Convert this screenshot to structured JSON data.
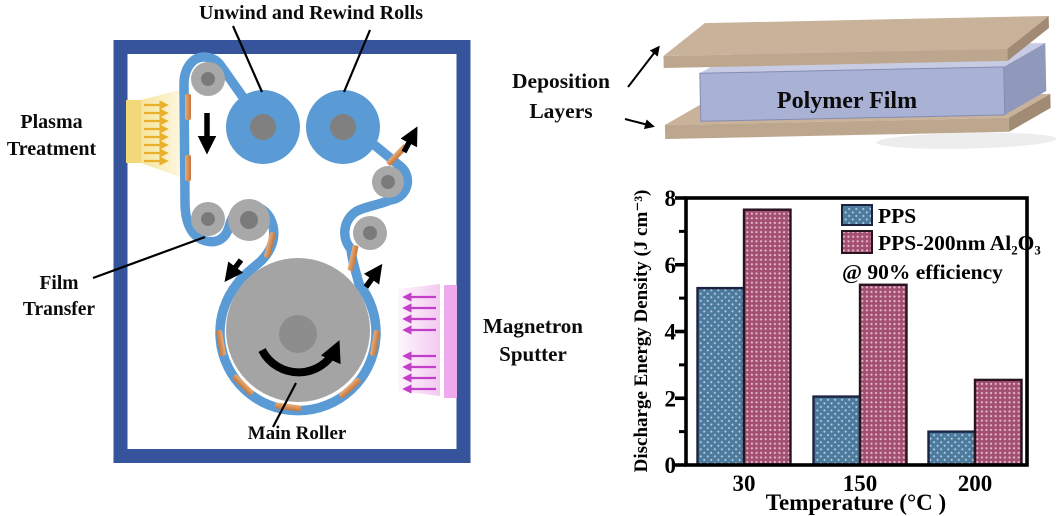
{
  "figure": {
    "labels": {
      "unwind_rolls": "Unwind and Rewind Rolls",
      "plasma": "Plasma\nTreatment",
      "film_transfer": "Film\nTransfer",
      "main_roller": "Main Roller",
      "magnetron": "Magnetron\nSputter",
      "deposition_layers": "Deposition\nLayers",
      "polymer_film": "Polymer Film"
    },
    "colors": {
      "chamber_wall": "#36549C",
      "film_web": "#5B9BD5",
      "roller_gray": "#A8A8A8",
      "roller_hub": "#7A7A7A",
      "coating_patch": "#CE8A50",
      "plasma_source": "#F2D878",
      "plasma_arrows": "#E9B02E",
      "sputter_source": "#EFA9ED",
      "sputter_arrows": "#C43FC9",
      "slab_tan": "#BDA68E",
      "slab_film": "#A9B1D4"
    }
  },
  "chart_data": {
    "type": "bar",
    "title": "",
    "categories": [
      "30",
      "150",
      "200"
    ],
    "series": [
      {
        "name": "PPS",
        "values": [
          5.3,
          2.05,
          1.0
        ],
        "color": "#4D7B9E",
        "dot": "#BBD1E1",
        "edge": "#1B2340"
      },
      {
        "name": "PPS-200nm Al₂O₃",
        "values": [
          7.65,
          5.4,
          2.55
        ],
        "color": "#A24F72",
        "dot": "#E4B8C9",
        "edge": "#2A1420"
      },
      {
        "name_note": ""
      }
    ],
    "annotation": "@ 90% efficiency",
    "xlabel": "Temperature (°C )",
    "ylabel": "Discharge Energy Density (J cm⁻³)",
    "ylim": [
      0,
      8
    ],
    "yticks": [
      0,
      2,
      4,
      6,
      8
    ],
    "yticks_minor": [
      1,
      3,
      5,
      7
    ],
    "legend_position": "top-right",
    "grid": false
  }
}
